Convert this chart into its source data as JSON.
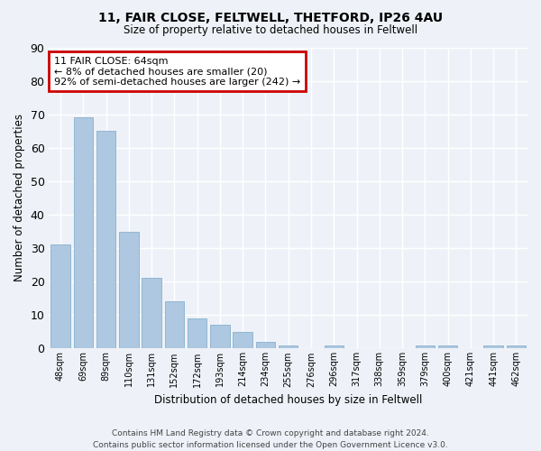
{
  "title1": "11, FAIR CLOSE, FELTWELL, THETFORD, IP26 4AU",
  "title2": "Size of property relative to detached houses in Feltwell",
  "xlabel": "Distribution of detached houses by size in Feltwell",
  "ylabel": "Number of detached properties",
  "categories": [
    "48sqm",
    "69sqm",
    "89sqm",
    "110sqm",
    "131sqm",
    "152sqm",
    "172sqm",
    "193sqm",
    "214sqm",
    "234sqm",
    "255sqm",
    "276sqm",
    "296sqm",
    "317sqm",
    "338sqm",
    "359sqm",
    "379sqm",
    "400sqm",
    "421sqm",
    "441sqm",
    "462sqm"
  ],
  "values": [
    31,
    69,
    65,
    35,
    21,
    14,
    9,
    7,
    5,
    2,
    1,
    0,
    1,
    0,
    0,
    0,
    1,
    1,
    0,
    1,
    1
  ],
  "bar_color": "#adc8e0",
  "bar_edge_color": "#8ab0ce",
  "background_color": "#eef2f8",
  "grid_color": "#ffffff",
  "ylim": [
    0,
    90
  ],
  "yticks": [
    0,
    10,
    20,
    30,
    40,
    50,
    60,
    70,
    80,
    90
  ],
  "annotation_box_text": "11 FAIR CLOSE: 64sqm\n← 8% of detached houses are smaller (20)\n92% of semi-detached houses are larger (242) →",
  "annotation_box_color": "#cc0000",
  "footer": "Contains HM Land Registry data © Crown copyright and database right 2024.\nContains public sector information licensed under the Open Government Licence v3.0."
}
